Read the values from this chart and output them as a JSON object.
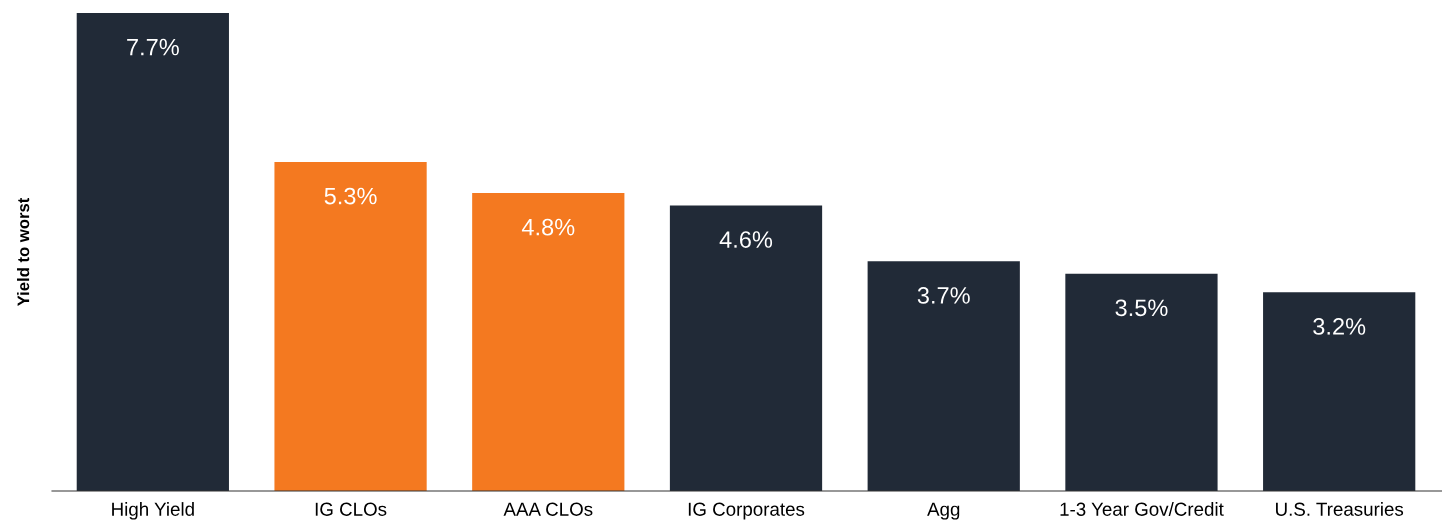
{
  "chart_data": {
    "type": "bar",
    "categories": [
      "High Yield",
      "IG CLOs",
      "AAA CLOs",
      "IG Corporates",
      "Agg",
      "1-3 Year Gov/Credit",
      "U.S. Treasuries"
    ],
    "values": [
      7.7,
      5.3,
      4.8,
      4.6,
      3.7,
      3.5,
      3.2
    ],
    "value_labels": [
      "7.7%",
      "5.3%",
      "4.8%",
      "4.6%",
      "3.7%",
      "3.5%",
      "3.2%"
    ],
    "colors": [
      "#212a37",
      "#f47920",
      "#f47920",
      "#212a37",
      "#212a37",
      "#212a37",
      "#212a37"
    ],
    "ylabel": "Yield to worst",
    "ylim": [
      0,
      7.7
    ],
    "tick_labels": "x",
    "grid": false,
    "legend": false
  }
}
